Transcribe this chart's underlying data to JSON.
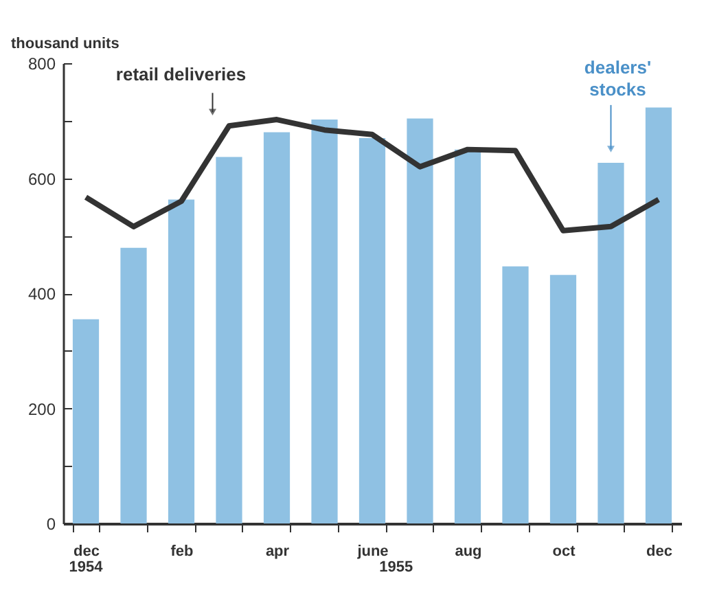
{
  "chart_data": {
    "type": "bar",
    "ylabel": "thousand units",
    "categories": [
      "dec",
      null,
      "feb",
      null,
      "apr",
      null,
      "june",
      null,
      "aug",
      null,
      "oct",
      null,
      "dec"
    ],
    "series": [
      {
        "name": "dealers' stocks",
        "color": "#8fc1e3",
        "values": [
          355,
          479,
          563,
          637,
          680,
          702,
          670,
          704,
          650,
          447,
          432,
          627,
          723
        ]
      },
      {
        "name": "retail deliveries",
        "type": "line",
        "color": "#333333",
        "values": [
          567,
          516,
          560,
          691,
          702,
          684,
          676,
          620,
          650,
          648,
          509,
          516,
          563
        ]
      }
    ],
    "ylim": [
      0,
      800
    ],
    "yticks": [
      0,
      {
        "value": 100,
        "label": null
      },
      200,
      {
        "value": 300,
        "label": null
      },
      400,
      {
        "value": 500,
        "label": null
      },
      600,
      {
        "value": 700,
        "label": null
      },
      800
    ],
    "annotations": [
      "1954",
      "1955"
    ],
    "grid": false,
    "legend": false
  }
}
